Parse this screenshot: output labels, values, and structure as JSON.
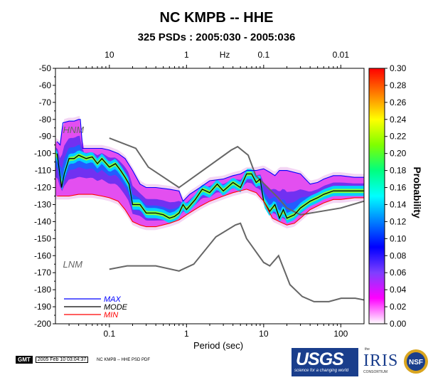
{
  "header": {
    "title": "NC KMPB -- HHE",
    "subtitle": "325 PSDs : 2005:030 - 2005:036"
  },
  "footer": {
    "gmt_logo": "GMT",
    "timestamp": "2005 Feb 10 03:04:37",
    "note": "NC KMPB -- HHE PSD PDF",
    "usgs_logo": "USGS",
    "usgs_tagline": "science for a changing world",
    "iris_small": "the",
    "iris_logo": "IRIS",
    "iris_consortium": "CONSORTIUM",
    "nsf_logo": "NSF"
  },
  "chart_data": {
    "type": "heatmap",
    "xlabel": "Period (sec)",
    "x_scale": "log",
    "xlim": [
      0.02,
      200
    ],
    "x_ticks": [
      {
        "value": 0.1,
        "label": "0.1"
      },
      {
        "value": 1,
        "label": "1"
      },
      {
        "value": 10,
        "label": "10"
      },
      {
        "value": 100,
        "label": "100"
      }
    ],
    "top_axis_label": "Hz",
    "top_ticks": [
      {
        "freq": 10,
        "label": "10"
      },
      {
        "freq": 1,
        "label": "1"
      },
      {
        "freq": 0.1,
        "label": "0.1"
      },
      {
        "freq": 0.01,
        "label": "0.01"
      }
    ],
    "ylim": [
      -200,
      -50
    ],
    "y_ticks": [
      -50,
      -60,
      -70,
      -80,
      -90,
      -100,
      -110,
      -120,
      -130,
      -140,
      -150,
      -160,
      -170,
      -180,
      -190,
      -200
    ],
    "colorbar": {
      "label": "Probability",
      "range": [
        0,
        0.3
      ],
      "ticks": [
        "0.00",
        "0.02",
        "0.04",
        "0.06",
        "0.08",
        "0.10",
        "0.12",
        "0.14",
        "0.16",
        "0.18",
        "0.20",
        "0.22",
        "0.24",
        "0.26",
        "0.28",
        "0.30"
      ],
      "colors": [
        "#ffffff",
        "#ff00ff",
        "#7f3fff",
        "#0000ff",
        "#007fff",
        "#00ffff",
        "#00ff7f",
        "#7fff00",
        "#ffff00",
        "#ff7f00",
        "#ff0000"
      ]
    },
    "reference_curves": [
      {
        "name": "HNM",
        "color": "#666666",
        "points": [
          [
            0.1,
            -91
          ],
          [
            0.22,
            -97
          ],
          [
            0.32,
            -108
          ],
          [
            0.8,
            -120
          ],
          [
            3.8,
            -98
          ],
          [
            4.6,
            -96
          ],
          [
            6.3,
            -101
          ],
          [
            7.9,
            -113
          ],
          [
            15.4,
            -126
          ],
          [
            20,
            -132
          ],
          [
            30,
            -136
          ],
          [
            100,
            -132
          ],
          [
            200,
            -128
          ]
        ]
      },
      {
        "name": "LNM",
        "color": "#666666",
        "points": [
          [
            0.1,
            -168
          ],
          [
            0.17,
            -166
          ],
          [
            0.4,
            -166
          ],
          [
            0.8,
            -169
          ],
          [
            1.24,
            -165
          ],
          [
            2.4,
            -149
          ],
          [
            4.3,
            -142
          ],
          [
            5,
            -141
          ],
          [
            6,
            -150
          ],
          [
            10,
            -164
          ],
          [
            12,
            -166
          ],
          [
            15.6,
            -160
          ],
          [
            21.9,
            -177
          ],
          [
            31.6,
            -184
          ],
          [
            45,
            -187
          ],
          [
            70,
            -187
          ],
          [
            101,
            -185
          ],
          [
            154,
            -185
          ],
          [
            200,
            -186
          ]
        ]
      }
    ],
    "series": [
      {
        "name": "MAX",
        "color": "#0000ff",
        "points": [
          [
            0.021,
            -93
          ],
          [
            0.023,
            -95
          ],
          [
            0.025,
            -82
          ],
          [
            0.03,
            -81
          ],
          [
            0.035,
            -81
          ],
          [
            0.04,
            -80
          ],
          [
            0.042,
            -80
          ],
          [
            0.045,
            -97
          ],
          [
            0.06,
            -97
          ],
          [
            0.08,
            -97
          ],
          [
            0.1,
            -98
          ],
          [
            0.13,
            -100
          ],
          [
            0.16,
            -103
          ],
          [
            0.2,
            -110
          ],
          [
            0.25,
            -118
          ],
          [
            0.3,
            -120
          ],
          [
            0.4,
            -120
          ],
          [
            0.6,
            -121
          ],
          [
            0.8,
            -122
          ],
          [
            0.9,
            -128
          ],
          [
            1.1,
            -124
          ],
          [
            1.5,
            -120
          ],
          [
            2,
            -116
          ],
          [
            3,
            -115
          ],
          [
            4,
            -113
          ],
          [
            5,
            -112
          ],
          [
            6,
            -110
          ],
          [
            8,
            -110
          ],
          [
            10,
            -109
          ],
          [
            12,
            -111
          ],
          [
            14,
            -113
          ],
          [
            16,
            -110
          ],
          [
            20,
            -110
          ],
          [
            30,
            -112
          ],
          [
            40,
            -118
          ],
          [
            50,
            -117
          ],
          [
            60,
            -115
          ],
          [
            80,
            -113
          ],
          [
            100,
            -113
          ],
          [
            150,
            -114
          ],
          [
            200,
            -114
          ]
        ]
      },
      {
        "name": "MODE",
        "color": "#000000",
        "points": [
          [
            0.021,
            -100
          ],
          [
            0.024,
            -120
          ],
          [
            0.026,
            -112
          ],
          [
            0.03,
            -103
          ],
          [
            0.035,
            -103
          ],
          [
            0.04,
            -101
          ],
          [
            0.05,
            -103
          ],
          [
            0.06,
            -102
          ],
          [
            0.07,
            -106
          ],
          [
            0.08,
            -103
          ],
          [
            0.1,
            -108
          ],
          [
            0.12,
            -106
          ],
          [
            0.14,
            -110
          ],
          [
            0.16,
            -114
          ],
          [
            0.18,
            -118
          ],
          [
            0.2,
            -130
          ],
          [
            0.25,
            -130
          ],
          [
            0.3,
            -135
          ],
          [
            0.4,
            -135
          ],
          [
            0.5,
            -136
          ],
          [
            0.6,
            -138
          ],
          [
            0.7,
            -137
          ],
          [
            0.8,
            -135
          ],
          [
            0.9,
            -130
          ],
          [
            1,
            -133
          ],
          [
            1.3,
            -127
          ],
          [
            1.6,
            -121
          ],
          [
            2,
            -123
          ],
          [
            2.5,
            -118
          ],
          [
            3,
            -122
          ],
          [
            4,
            -117
          ],
          [
            5,
            -120
          ],
          [
            6,
            -112
          ],
          [
            7,
            -112
          ],
          [
            8,
            -117
          ],
          [
            9,
            -115
          ],
          [
            10,
            -128
          ],
          [
            12,
            -134
          ],
          [
            14,
            -130
          ],
          [
            16,
            -138
          ],
          [
            18,
            -133
          ],
          [
            20,
            -138
          ],
          [
            25,
            -136
          ],
          [
            30,
            -132
          ],
          [
            40,
            -128
          ],
          [
            50,
            -126
          ],
          [
            60,
            -124
          ],
          [
            80,
            -122
          ],
          [
            100,
            -122
          ],
          [
            150,
            -122
          ],
          [
            200,
            -122
          ]
        ]
      },
      {
        "name": "MIN",
        "color": "#ff0000",
        "points": [
          [
            0.021,
            -125
          ],
          [
            0.03,
            -125
          ],
          [
            0.04,
            -124
          ],
          [
            0.06,
            -124
          ],
          [
            0.08,
            -125
          ],
          [
            0.1,
            -126
          ],
          [
            0.13,
            -128
          ],
          [
            0.16,
            -133
          ],
          [
            0.2,
            -140
          ],
          [
            0.25,
            -142
          ],
          [
            0.3,
            -143
          ],
          [
            0.4,
            -143
          ],
          [
            0.6,
            -141
          ],
          [
            0.8,
            -139
          ],
          [
            1,
            -136
          ],
          [
            1.5,
            -131
          ],
          [
            2,
            -128
          ],
          [
            3,
            -125
          ],
          [
            4,
            -123
          ],
          [
            6,
            -121
          ],
          [
            8,
            -123
          ],
          [
            10,
            -128
          ],
          [
            13,
            -138
          ],
          [
            16,
            -140
          ],
          [
            20,
            -142
          ],
          [
            25,
            -141
          ],
          [
            30,
            -138
          ],
          [
            40,
            -133
          ],
          [
            60,
            -129
          ],
          [
            80,
            -127
          ],
          [
            100,
            -127
          ],
          [
            150,
            -126
          ],
          [
            200,
            -126
          ]
        ]
      }
    ],
    "legend": {
      "position": "bottom-left"
    }
  }
}
